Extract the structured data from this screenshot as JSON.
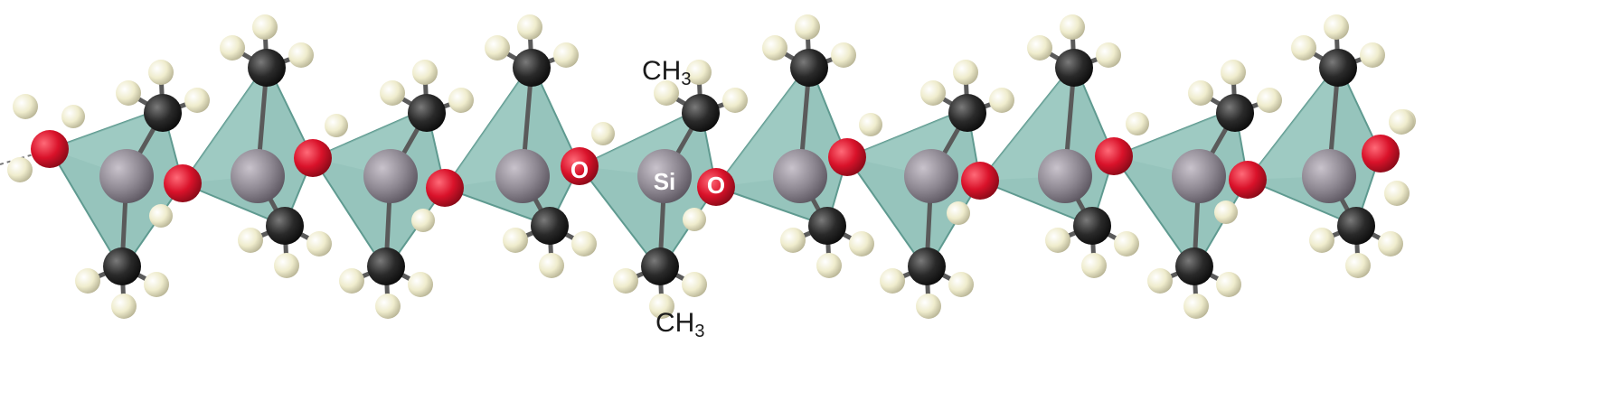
{
  "labels": {
    "methyl_top_main": "CH",
    "methyl_top_sub": "3",
    "methyl_bottom_main": "CH",
    "methyl_bottom_sub": "3",
    "oxygen_left": "O",
    "silicon": "Si",
    "oxygen_right": "O"
  },
  "colors": {
    "tetrahedron": "#7fb7ad",
    "silicon": "#8c8690",
    "oxygen": "#d9122a",
    "carbon": "#2a2a2a",
    "hydrogen": "#efeccd",
    "bond": "#5a5a5a"
  },
  "structure": {
    "silicon_units": 10,
    "methyl_groups_per_silicon": 2
  }
}
